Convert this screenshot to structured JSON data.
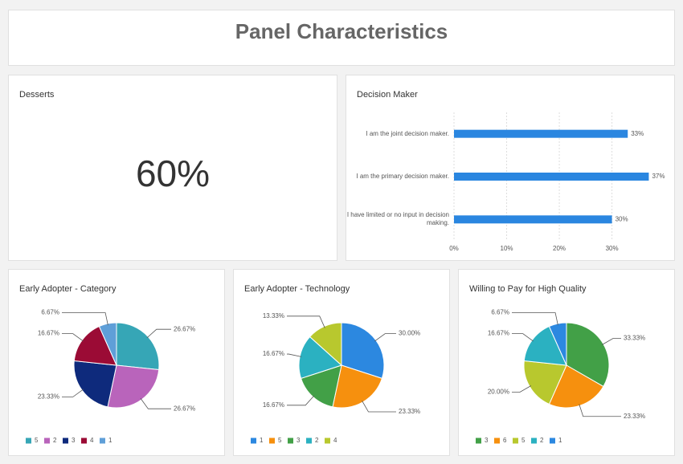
{
  "header": {
    "title": "Panel Characteristics"
  },
  "chart_data": [
    {
      "type": "metric",
      "title": "Desserts",
      "values": [
        60
      ],
      "value_labels": [
        "60%"
      ]
    },
    {
      "type": "bar",
      "orientation": "horizontal",
      "title": "Decision Maker",
      "categories": [
        "I am the joint decision maker.",
        "I am the primary decision maker.",
        "I have limited or no input in decision making."
      ],
      "values": [
        33,
        37,
        30
      ],
      "value_labels": [
        "33%",
        "37%",
        "30%"
      ],
      "color": "#2a86e0",
      "xlim": [
        0,
        38
      ],
      "xticks": [
        {
          "value": 0,
          "label": "0%"
        },
        {
          "value": 10,
          "label": "10%"
        },
        {
          "value": 20,
          "label": "20%"
        },
        {
          "value": 30,
          "label": "30%"
        }
      ],
      "grid": true
    },
    {
      "type": "pie",
      "title": "Early Adopter - Category",
      "categories": [
        "5",
        "2",
        "3",
        "4",
        "1"
      ],
      "values": [
        26.67,
        26.67,
        23.33,
        16.67,
        6.67
      ],
      "value_labels": [
        "26.67%",
        "26.67%",
        "23.33%",
        "16.67%",
        "6.67%"
      ],
      "colors": [
        "#36a6b6",
        "#b964bb",
        "#0e2a7c",
        "#9b0b35",
        "#5f9fd8"
      ]
    },
    {
      "type": "pie",
      "title": "Early Adopter - Technology",
      "categories": [
        "1",
        "5",
        "3",
        "2",
        "4"
      ],
      "values": [
        30.0,
        23.33,
        16.67,
        16.67,
        13.33
      ],
      "value_labels": [
        "30.00%",
        "23.33%",
        "16.67%",
        "16.67%",
        "13.33%"
      ],
      "colors": [
        "#2c88e0",
        "#f6900e",
        "#42a047",
        "#2bb1c1",
        "#b8c82e"
      ]
    },
    {
      "type": "pie",
      "title": "Willing to Pay for High Quality",
      "categories": [
        "3",
        "6",
        "5",
        "2",
        "1"
      ],
      "values": [
        33.33,
        23.33,
        20.0,
        16.67,
        6.67
      ],
      "value_labels": [
        "33.33%",
        "23.33%",
        "20.00%",
        "16.67%",
        "6.67%"
      ],
      "colors": [
        "#42a047",
        "#f6900e",
        "#b8c82e",
        "#2bb1c1",
        "#2c88e0"
      ]
    }
  ]
}
